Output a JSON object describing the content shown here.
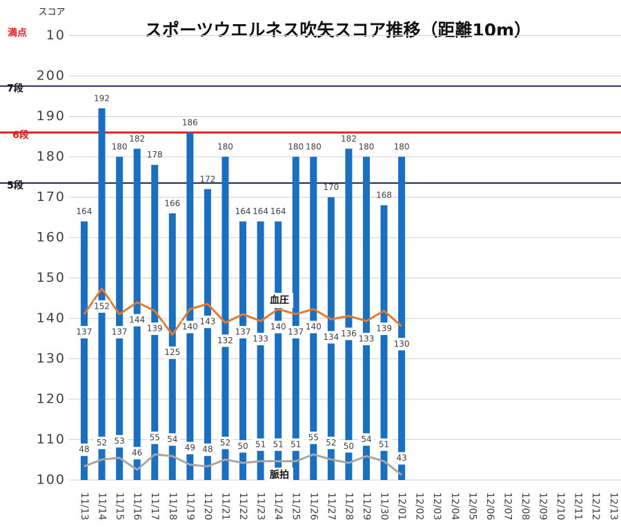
{
  "chart_data": {
    "type": "bar",
    "title": "スポーツウエルネス吹矢スコア推移（距離10m）",
    "y_label": "スコア",
    "top_note": "満点",
    "categories": [
      "11/13",
      "11/14",
      "11/15",
      "11/16",
      "11/17",
      "11/18",
      "11/19",
      "11/20",
      "11/21",
      "11/22",
      "11/23",
      "11/24",
      "11/25",
      "11/26",
      "11/27",
      "11/28",
      "11/29",
      "11/30",
      "12/01",
      "12/02",
      "12/03",
      "12/04",
      "12/05",
      "12/06",
      "12/07",
      "12/08",
      "12/09",
      "12/10",
      "12/11",
      "12/12",
      "12/13"
    ],
    "values": [
      164,
      192,
      180,
      182,
      178,
      166,
      186,
      172,
      180,
      164,
      164,
      164,
      180,
      180,
      170,
      182,
      180,
      168,
      180,
      null,
      null,
      null,
      null,
      null,
      null,
      null,
      null,
      null,
      null,
      null,
      null
    ],
    "color": "#1a6fc0",
    "ylim": [
      100,
      210
    ],
    "yticks": [
      100,
      110,
      120,
      130,
      140,
      150,
      160,
      170,
      180,
      190,
      200,
      {
        "value": 210,
        "label": "10"
      }
    ],
    "y2lim": [
      40,
      300
    ],
    "grid": true,
    "reference_lines": [
      {
        "label": "7段",
        "value": 197.5,
        "color": "#1c2a5a"
      },
      {
        "label": "6段",
        "value": 186,
        "color": "#e02020"
      },
      {
        "label": "5段",
        "value": 173.5,
        "color": "#1c2a5a"
      }
    ],
    "series": [
      {
        "name": "血圧",
        "type": "line",
        "axis": "y2",
        "color": "#e07b30",
        "values": [
          137,
          152,
          137,
          144,
          139,
          125,
          140,
          143,
          132,
          137,
          133,
          140,
          137,
          140,
          134,
          136,
          133,
          139,
          130,
          null,
          null,
          null,
          null,
          null,
          null,
          null,
          null,
          null,
          null,
          null,
          null
        ]
      },
      {
        "name": "脈拍",
        "type": "line",
        "axis": "y2",
        "color": "#a6a6a6",
        "values": [
          48,
          52,
          53,
          46,
          55,
          54,
          49,
          48,
          52,
          50,
          51,
          51,
          51,
          55,
          52,
          50,
          54,
          51,
          43,
          null,
          null,
          null,
          null,
          null,
          null,
          null,
          null,
          null,
          null,
          null,
          null
        ]
      }
    ]
  }
}
